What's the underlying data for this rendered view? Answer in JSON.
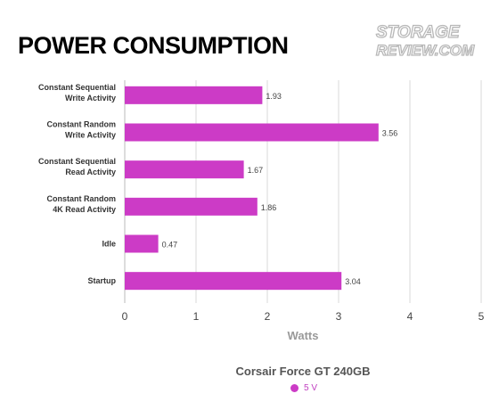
{
  "page_title": "POWER CONSUMPTION",
  "watermark": {
    "line1": "STORAGE",
    "line2": "REVIEW.COM"
  },
  "chart_data": {
    "type": "bar",
    "orientation": "horizontal",
    "categories": [
      [
        "Constant Sequential",
        "Write Activity"
      ],
      [
        "Constant Random",
        "Write Activity"
      ],
      [
        "Constant Sequential",
        "Read Activity"
      ],
      [
        "Constant Random",
        "4K Read Activity"
      ],
      [
        "Idle"
      ],
      [
        "Startup"
      ]
    ],
    "series": [
      {
        "name": "5 V",
        "color": "#cc3bc6",
        "values": [
          1.93,
          3.56,
          1.67,
          1.86,
          0.47,
          3.04
        ]
      }
    ],
    "data_labels": [
      "1.93",
      "3.56",
      "1.67",
      "1.86",
      "0.47",
      "3.04"
    ],
    "xlabel": "Watts",
    "xlim": [
      0,
      5
    ],
    "xticks": [
      "0",
      "1",
      "2",
      "3",
      "4",
      "5"
    ],
    "grid": true,
    "legend_title": "Corsair Force GT 240GB",
    "legend_position": "bottom"
  }
}
